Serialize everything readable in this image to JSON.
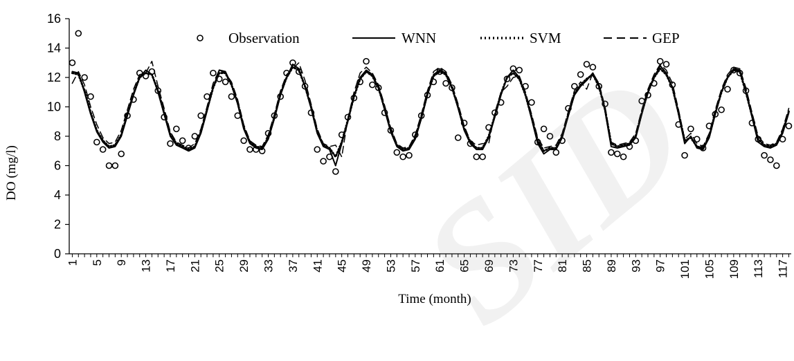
{
  "chart_data": {
    "type": "line",
    "xlabel": "Time (month)",
    "ylabel": "DO (mg/l)",
    "ylim": [
      0,
      16
    ],
    "yticks": [
      0,
      2,
      4,
      6,
      8,
      10,
      12,
      14,
      16
    ],
    "xlim": [
      1,
      118
    ],
    "xticks": [
      1,
      5,
      9,
      13,
      17,
      21,
      25,
      29,
      33,
      37,
      41,
      45,
      49,
      53,
      57,
      61,
      65,
      69,
      73,
      77,
      81,
      85,
      89,
      93,
      97,
      101,
      105,
      109,
      113,
      117
    ],
    "grid": false,
    "legend_position": "top",
    "series": [
      {
        "name": "Observation",
        "style": "circle-markers",
        "color": "#000000",
        "x": [
          1,
          2,
          3,
          4,
          5,
          6,
          7,
          8,
          9,
          10,
          11,
          12,
          13,
          14,
          15,
          16,
          17,
          18,
          19,
          20,
          21,
          22,
          23,
          24,
          25,
          26,
          27,
          28,
          29,
          30,
          31,
          32,
          33,
          34,
          35,
          36,
          37,
          38,
          39,
          40,
          41,
          42,
          43,
          44,
          45,
          46,
          47,
          48,
          49,
          50,
          51,
          52,
          53,
          54,
          55,
          56,
          57,
          58,
          59,
          60,
          61,
          62,
          63,
          64,
          65,
          66,
          67,
          68,
          69,
          70,
          71,
          72,
          73,
          74,
          75,
          76,
          77,
          78,
          79,
          80,
          81,
          82,
          83,
          84,
          85,
          86,
          87,
          88,
          89,
          90,
          91,
          92,
          93,
          94,
          95,
          96,
          97,
          98,
          99,
          100,
          101,
          102,
          103,
          104,
          105,
          106,
          107,
          108,
          109,
          110,
          111,
          112,
          113,
          114,
          115,
          116,
          117,
          118
        ],
        "values": [
          13.0,
          15.0,
          12.0,
          10.7,
          7.6,
          7.1,
          6.0,
          6.0,
          6.8,
          9.4,
          10.5,
          12.3,
          12.1,
          12.4,
          11.1,
          9.3,
          7.5,
          8.5,
          7.7,
          7.2,
          8.0,
          9.4,
          10.7,
          12.3,
          11.9,
          11.7,
          10.7,
          9.4,
          7.7,
          7.1,
          7.1,
          7.0,
          8.2,
          9.4,
          10.7,
          12.3,
          13.0,
          12.4,
          11.4,
          9.6,
          7.1,
          6.3,
          6.6,
          5.6,
          8.1,
          9.3,
          10.6,
          11.7,
          13.1,
          11.5,
          11.3,
          9.6,
          8.4,
          6.9,
          6.6,
          6.7,
          8.1,
          9.4,
          10.8,
          11.7,
          12.4,
          11.6,
          11.3,
          7.9,
          8.9,
          7.5,
          6.6,
          6.6,
          8.6,
          9.6,
          10.3,
          11.9,
          12.6,
          12.5,
          11.4,
          10.3,
          7.6,
          8.5,
          8.0,
          6.9,
          7.7,
          9.9,
          11.4,
          12.2,
          12.9,
          12.7,
          11.4,
          10.2,
          6.9,
          6.8,
          6.6,
          7.3,
          7.7,
          10.4,
          10.8,
          11.6,
          13.1,
          12.9,
          11.5,
          8.8,
          6.7,
          8.5,
          7.8,
          7.2,
          8.7,
          9.5,
          9.8,
          11.2,
          12.5,
          12.3,
          11.1,
          8.9,
          7.8,
          6.7,
          6.4,
          6.0,
          7.8,
          8.7
        ]
      },
      {
        "name": "WNN",
        "style": "solid",
        "color": "#000000",
        "x": [
          1,
          2,
          3,
          4,
          5,
          6,
          7,
          8,
          9,
          10,
          11,
          12,
          13,
          14,
          15,
          16,
          17,
          18,
          19,
          20,
          21,
          22,
          23,
          24,
          25,
          26,
          27,
          28,
          29,
          30,
          31,
          32,
          33,
          34,
          35,
          36,
          37,
          38,
          39,
          40,
          41,
          42,
          43,
          44,
          45,
          46,
          47,
          48,
          49,
          50,
          51,
          52,
          53,
          54,
          55,
          56,
          57,
          58,
          59,
          60,
          61,
          62,
          63,
          64,
          65,
          66,
          67,
          68,
          69,
          70,
          71,
          72,
          73,
          74,
          75,
          76,
          77,
          78,
          79,
          80,
          81,
          82,
          83,
          84,
          85,
          86,
          87,
          88,
          89,
          90,
          91,
          92,
          93,
          94,
          95,
          96,
          97,
          98,
          99,
          100,
          101,
          102,
          103,
          104,
          105,
          106,
          107,
          108,
          109,
          110,
          111,
          112,
          113,
          114,
          115,
          116,
          117,
          118
        ],
        "values": [
          12.4,
          12.3,
          11.0,
          9.5,
          8.3,
          7.6,
          7.2,
          7.3,
          8.0,
          9.4,
          10.8,
          12.0,
          12.5,
          12.2,
          11.0,
          9.5,
          8.0,
          7.4,
          7.2,
          7.0,
          7.2,
          8.2,
          9.7,
          11.3,
          12.5,
          12.4,
          11.5,
          10.2,
          8.5,
          7.5,
          7.2,
          7.1,
          7.8,
          9.2,
          10.8,
          12.0,
          12.9,
          12.6,
          11.4,
          9.9,
          8.2,
          7.3,
          7.1,
          6.0,
          7.5,
          9.0,
          10.7,
          12.0,
          12.5,
          12.2,
          11.3,
          9.8,
          8.3,
          7.3,
          7.0,
          7.1,
          7.8,
          9.2,
          10.8,
          12.2,
          12.5,
          12.3,
          11.3,
          9.9,
          8.4,
          7.5,
          7.1,
          7.1,
          7.9,
          9.3,
          10.8,
          12.0,
          12.5,
          12.0,
          10.8,
          9.2,
          7.5,
          6.8,
          7.1,
          7.1,
          7.9,
          9.4,
          10.8,
          11.4,
          11.8,
          12.3,
          11.5,
          9.7,
          7.3,
          7.2,
          7.3,
          7.4,
          7.9,
          9.5,
          11.0,
          12.0,
          12.8,
          12.3,
          11.3,
          9.5,
          7.5,
          8.0,
          7.2,
          7.1,
          7.9,
          9.5,
          11.0,
          12.0,
          12.6,
          12.5,
          11.0,
          9.3,
          7.6,
          7.3,
          7.2,
          7.4,
          8.2,
          9.6
        ]
      },
      {
        "name": "SVM",
        "style": "dotted",
        "color": "#000000",
        "x": [
          1,
          2,
          3,
          4,
          5,
          6,
          7,
          8,
          9,
          10,
          11,
          12,
          13,
          14,
          15,
          16,
          17,
          18,
          19,
          20,
          21,
          22,
          23,
          24,
          25,
          26,
          27,
          28,
          29,
          30,
          31,
          32,
          33,
          34,
          35,
          36,
          37,
          38,
          39,
          40,
          41,
          42,
          43,
          44,
          45,
          46,
          47,
          48,
          49,
          50,
          51,
          52,
          53,
          54,
          55,
          56,
          57,
          58,
          59,
          60,
          61,
          62,
          63,
          64,
          65,
          66,
          67,
          68,
          69,
          70,
          71,
          72,
          73,
          74,
          75,
          76,
          77,
          78,
          79,
          80,
          81,
          82,
          83,
          84,
          85,
          86,
          87,
          88,
          89,
          90,
          91,
          92,
          93,
          94,
          95,
          96,
          97,
          98,
          99,
          100,
          101,
          102,
          103,
          104,
          105,
          106,
          107,
          108,
          109,
          110,
          111,
          112,
          113,
          114,
          115,
          116,
          117,
          118
        ],
        "values": [
          12.3,
          12.2,
          11.1,
          9.6,
          8.4,
          7.7,
          7.3,
          7.4,
          8.1,
          9.5,
          10.9,
          12.0,
          12.3,
          12.2,
          11.1,
          9.6,
          8.1,
          7.5,
          7.3,
          7.1,
          7.3,
          8.3,
          9.8,
          11.3,
          12.3,
          12.3,
          11.5,
          10.3,
          8.6,
          7.6,
          7.3,
          7.2,
          7.9,
          9.3,
          10.9,
          12.0,
          12.7,
          12.5,
          11.4,
          10.0,
          8.3,
          7.4,
          7.2,
          6.6,
          7.6,
          9.1,
          10.7,
          11.9,
          12.4,
          12.1,
          11.3,
          9.9,
          8.4,
          7.4,
          7.1,
          7.2,
          7.9,
          9.3,
          10.9,
          12.1,
          12.4,
          12.2,
          11.3,
          10.0,
          8.5,
          7.6,
          7.2,
          7.2,
          8.0,
          9.4,
          10.9,
          12.0,
          12.3,
          11.9,
          10.8,
          9.3,
          7.7,
          7.0,
          7.2,
          7.2,
          8.0,
          9.5,
          10.9,
          11.5,
          11.9,
          12.2,
          11.4,
          9.8,
          7.5,
          7.3,
          7.4,
          7.5,
          8.0,
          9.6,
          11.0,
          12.0,
          12.6,
          12.2,
          11.3,
          9.6,
          7.7,
          7.9,
          7.3,
          7.2,
          8.0,
          9.6,
          11.0,
          12.0,
          12.5,
          12.4,
          11.0,
          9.4,
          7.8,
          7.4,
          7.3,
          7.5,
          8.3,
          9.7
        ]
      },
      {
        "name": "GEP",
        "style": "dashed",
        "color": "#000000",
        "x": [
          1,
          2,
          3,
          4,
          5,
          6,
          7,
          8,
          9,
          10,
          11,
          12,
          13,
          14,
          15,
          16,
          17,
          18,
          19,
          20,
          21,
          22,
          23,
          24,
          25,
          26,
          27,
          28,
          29,
          30,
          31,
          32,
          33,
          34,
          35,
          36,
          37,
          38,
          39,
          40,
          41,
          42,
          43,
          44,
          45,
          46,
          47,
          48,
          49,
          50,
          51,
          52,
          53,
          54,
          55,
          56,
          57,
          58,
          59,
          60,
          61,
          62,
          63,
          64,
          65,
          66,
          67,
          68,
          69,
          70,
          71,
          72,
          73,
          74,
          75,
          76,
          77,
          78,
          79,
          80,
          81,
          82,
          83,
          84,
          85,
          86,
          87,
          88,
          89,
          90,
          91,
          92,
          93,
          94,
          95,
          96,
          97,
          98,
          99,
          100,
          101,
          102,
          103,
          104,
          105,
          106,
          107,
          108,
          109,
          110,
          111,
          112,
          113,
          114,
          115,
          116,
          117,
          118
        ],
        "values": [
          11.6,
          12.4,
          11.5,
          10.0,
          8.8,
          7.9,
          7.5,
          7.6,
          8.4,
          9.8,
          11.2,
          12.2,
          12.3,
          13.1,
          11.4,
          9.9,
          8.3,
          7.6,
          7.4,
          7.2,
          7.5,
          8.5,
          10.0,
          11.6,
          12.5,
          12.3,
          11.7,
          10.5,
          8.8,
          7.7,
          7.4,
          7.3,
          8.1,
          9.5,
          11.1,
          12.2,
          12.6,
          13.0,
          11.8,
          10.2,
          8.5,
          7.5,
          7.3,
          7.4,
          6.6,
          9.2,
          11.0,
          12.3,
          12.7,
          12.3,
          11.5,
          10.1,
          8.6,
          7.5,
          7.2,
          7.3,
          8.1,
          9.5,
          11.1,
          12.4,
          12.7,
          12.4,
          11.5,
          10.2,
          8.7,
          7.7,
          7.4,
          7.5,
          7.5,
          9.6,
          11.0,
          11.4,
          12.0,
          12.1,
          11.0,
          9.5,
          7.9,
          7.2,
          7.3,
          7.4,
          8.2,
          9.7,
          11.1,
          11.7,
          11.2,
          12.3,
          11.6,
          10.0,
          7.6,
          7.4,
          7.5,
          7.6,
          8.2,
          9.8,
          11.2,
          12.2,
          12.9,
          12.5,
          11.6,
          9.8,
          7.8,
          8.2,
          7.5,
          7.3,
          8.2,
          9.8,
          11.2,
          12.2,
          12.7,
          12.6,
          11.3,
          9.6,
          8.0,
          7.5,
          7.4,
          7.6,
          8.5,
          9.9
        ]
      }
    ]
  }
}
